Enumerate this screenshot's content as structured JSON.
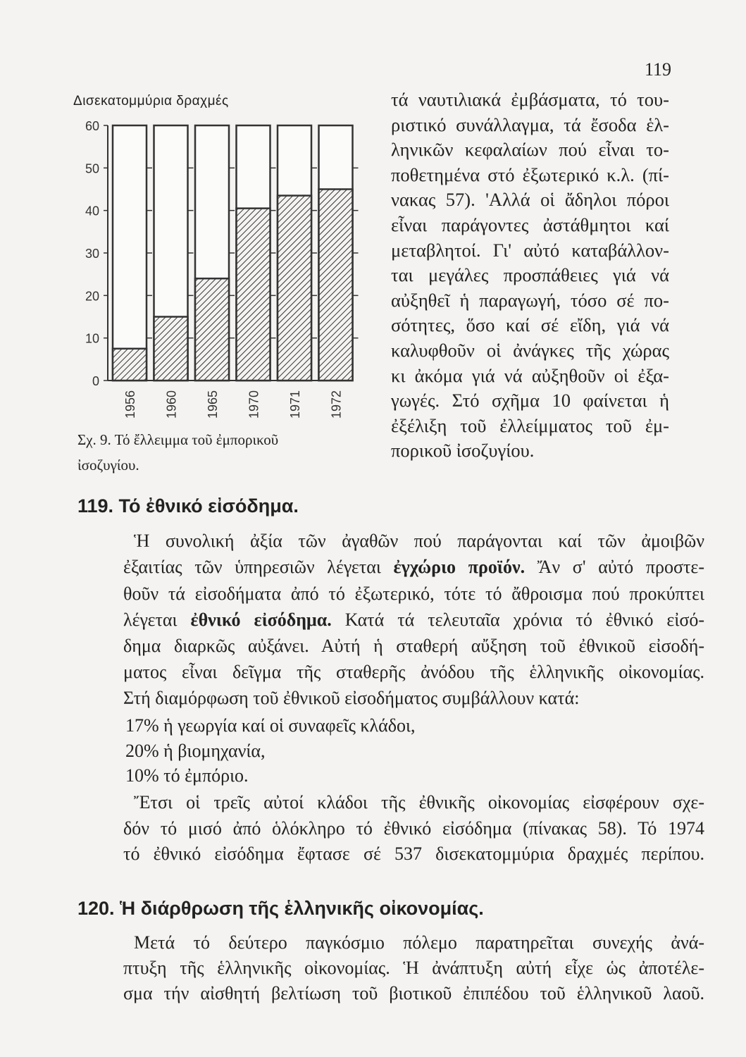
{
  "page_number": "119",
  "chart_data": {
    "type": "bar",
    "title": "",
    "ylabel": "Δισεκατομμύρια δραχμές",
    "xlabel": "",
    "categories": [
      "1956",
      "1960",
      "1965",
      "1970",
      "1971",
      "1972"
    ],
    "values": [
      7.5,
      15,
      24,
      40.5,
      43.5,
      45
    ],
    "ylim": [
      0,
      60
    ],
    "yticks": [
      "0",
      "10",
      "20",
      "30",
      "40",
      "50",
      "60"
    ],
    "bar_style": "hatched value within full-height outlined column",
    "grid": false
  },
  "caption": {
    "line1": "Σχ. 9.  Τό ἔλλειμμα τοῦ ἐμπορικοῦ",
    "line2": "ἰσοζυγίου."
  },
  "right_column": [
    "τά ναυτιλιακά ἐμβάσματα, τό του-",
    "ριστικό συνάλλαγμα, τά ἔσοδα ἑλ-",
    "ληνικῶν κεφαλαίων πού εἶναι το-",
    "ποθετημένα στό ἐξωτερικό κ.λ. (πί-",
    "νακας 57). 'Αλλά οἱ ἄδηλοι πόροι",
    "εἶναι παράγοντες ἀστάθμητοι καί",
    "μεταβλητοί. Γι' αὐτό καταβάλλον-",
    "ται μεγάλες προσπάθειες γιά νά",
    "αὐξηθεῖ ἡ παραγωγή, τόσο σέ πο-",
    "σότητες, ὅσο καί σέ εἴδη, γιά νά",
    "καλυφθοῦν οἱ ἀνάγκες τῆς χώρας",
    "κι ἀκόμα γιά νά αὐξηθοῦν οἱ ἐξα-",
    "γωγές. Στό σχῆμα 10 φαίνεται ἡ",
    "ἐξέλιξη τοῦ ἐλλείμματος τοῦ ἐμ-",
    "πορικοῦ ἰσοζυγίου."
  ],
  "section119": {
    "heading": "119. Τό ἐθνικό εἰσόδημα.",
    "l1": "Ἡ συνολική ἀξία τῶν ἀγαθῶν πού παράγονται καί τῶν ἀμοιβῶν",
    "l2a": "ἐξαιτίας τῶν ὑπηρεσιῶν λέγεται ",
    "l2b": "ἐγχώριο προϊόν.",
    "l2c": " Ἄν σ' αὐτό προστε-",
    "l3": "θοῦν τά εἰσοδήματα ἀπό τό ἐξωτερικό, τότε τό ἄθροισμα πού προκύπτει",
    "l4a": "λέγεται ",
    "l4b": "ἐθνικό εἰσόδημα.",
    "l4c": " Κατά τά τελευταῖα χρόνια τό ἐθνικό εἰσό-",
    "l5": "δημα διαρκῶς αὐξάνει. Αὐτή ἡ σταθερή αὔξηση τοῦ ἐθνικοῦ εἰσοδή-",
    "l6": "ματος εἶναι δεῖγμα τῆς σταθερῆς ἀνόδου τῆς ἑλληνικῆς οἰκονομίας.",
    "l7": "Στή διαμόρφωση τοῦ ἐθνικοῦ εἰσοδήματος συμβάλλουν κατά:",
    "list": [
      "17% ἡ γεωργία καί οἱ συναφεῖς κλάδοι,",
      "20% ἡ βιομηχανία,",
      "10% τό ἐμπόριο."
    ],
    "p2": [
      "Ἔτσι οἱ τρεῖς αὐτοί κλάδοι τῆς ἐθνικῆς οἰκονομίας εἰσφέρουν σχε-",
      "δόν τό μισό ἀπό ὁλόκληρο τό ἐθνικό εἰσόδημα (πίνακας 58). Τό 1974",
      "τό ἐθνικό εἰσόδημα ἔφτασε σέ 537 δισεκατομμύρια δραχμές περίπου."
    ]
  },
  "section120": {
    "heading": "120. Ἡ διάρθρωση τῆς ἑλληνικῆς οἰκονομίας.",
    "lines": [
      "Μετά τό δεύτερο παγκόσμιο πόλεμο παρατηρεῖται συνεχής ἀνά-",
      "πτυξη τῆς ἑλληνικῆς οἰκονομίας. Ἡ ἀνάπτυξη αὐτή εἶχε ὡς ἀποτέλε-",
      "σμα τήν αἰσθητή βελτίωση τοῦ βιοτικοῦ ἐπιπέδου τοῦ ἑλληνικοῦ λαοῦ."
    ]
  }
}
